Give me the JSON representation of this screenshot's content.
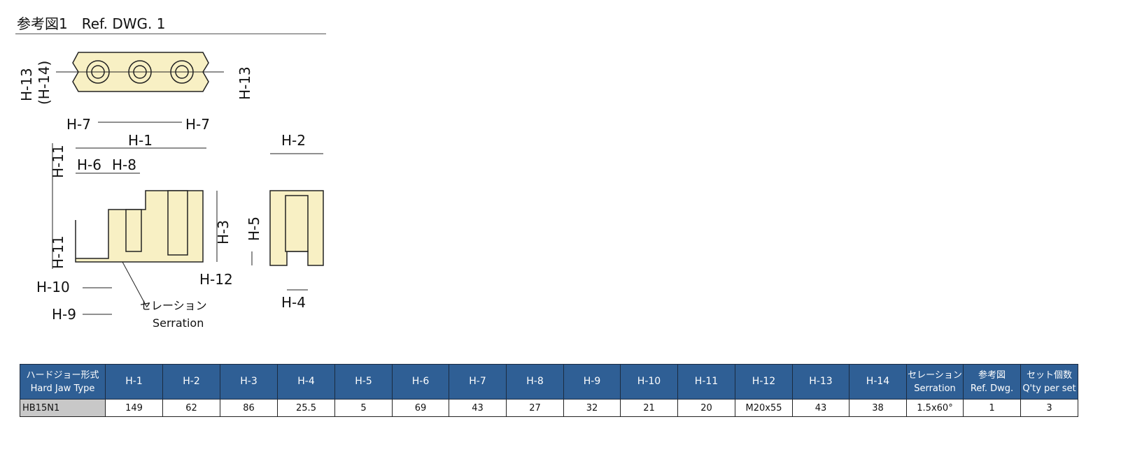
{
  "title": "参考図1　Ref. DWG. 1",
  "drawing": {
    "labels": {
      "h13_left": "H-13",
      "h14_left": "(H-14)",
      "h13_right": "H-13",
      "h7_left": "H-7",
      "h7_right": "H-7",
      "h1": "H-1",
      "h2": "H-2",
      "h11_top": "H-11",
      "h6": "H-6",
      "h8": "H-8",
      "h3": "H-3",
      "h5": "H-5",
      "h11_bottom": "H-11",
      "h12": "H-12",
      "h10": "H-10",
      "h9": "H-9",
      "h4": "H-4",
      "serration_jp": "セレーション",
      "serration_en": "Serration"
    },
    "fill_color": "#f8f0c4"
  },
  "table": {
    "headers": [
      {
        "jp": "ハードジョー形式",
        "en": "Hard Jaw Type"
      },
      {
        "en": "H-1"
      },
      {
        "en": "H-2"
      },
      {
        "en": "H-3"
      },
      {
        "en": "H-4"
      },
      {
        "en": "H-5"
      },
      {
        "en": "H-6"
      },
      {
        "en": "H-7"
      },
      {
        "en": "H-8"
      },
      {
        "en": "H-9"
      },
      {
        "en": "H-10"
      },
      {
        "en": "H-11"
      },
      {
        "en": "H-12"
      },
      {
        "en": "H-13"
      },
      {
        "en": "H-14"
      },
      {
        "jp": "セレーション",
        "en": "Serration"
      },
      {
        "jp": "参考図",
        "en": "Ref. Dwg."
      },
      {
        "jp": "セット個数",
        "en": "Q'ty per set"
      }
    ],
    "rows": [
      [
        "HB15N1",
        "149",
        "62",
        "86",
        "25.5",
        "5",
        "69",
        "43",
        "27",
        "32",
        "21",
        "20",
        "M20x55",
        "43",
        "38",
        "1.5x60°",
        "1",
        "3"
      ]
    ],
    "header_color": "#2f5f95"
  }
}
